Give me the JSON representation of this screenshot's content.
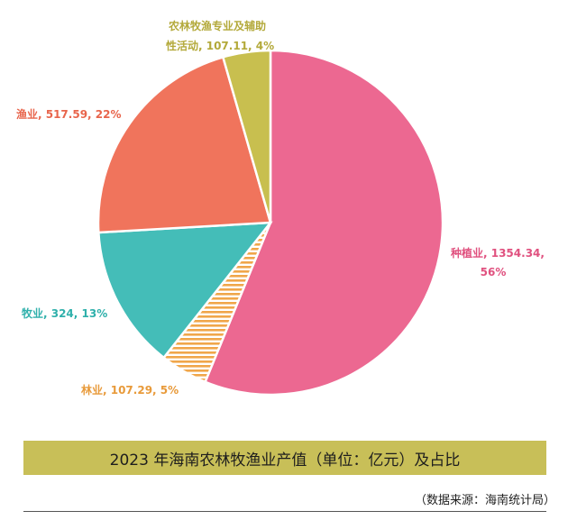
{
  "chart_data": {
    "type": "pie",
    "title": "2023 年海南农林牧渔业产值（单位：亿元）及占比",
    "source": "（数据来源：海南统计局）",
    "slices": [
      {
        "name": "种植业",
        "value": 1354.34,
        "percent": "56%",
        "label_line1": "种植业, 1354.34,",
        "label_line2": "56%",
        "color": "#ec6891",
        "pattern": false
      },
      {
        "name": "林业",
        "value": 107.29,
        "percent": "5%",
        "label_line1": "林业, 107.29, 5%",
        "label_line2": "",
        "color": "#f0a64a",
        "pattern": true
      },
      {
        "name": "牧业",
        "value": 324,
        "percent": "13%",
        "label_line1": "牧业, 324, 13%",
        "label_line2": "",
        "color": "#44bdb8",
        "pattern": false
      },
      {
        "name": "渔业",
        "value": 517.59,
        "percent": "22%",
        "label_line1": "渔业, 517.59, 22%",
        "label_line2": "",
        "color": "#f0745c",
        "pattern": false
      },
      {
        "name": "农林牧渔专业及辅助性活动",
        "value": 107.11,
        "percent": "4%",
        "label_line1": "农林牧渔专业及辅助",
        "label_line2": "性活动, 107.11, 4%",
        "color": "#c8bf4f",
        "pattern": false
      }
    ],
    "label_colors": [
      "#e0517f",
      "#e89a3a",
      "#2fb0ab",
      "#e8654c",
      "#b3a93a"
    ]
  }
}
